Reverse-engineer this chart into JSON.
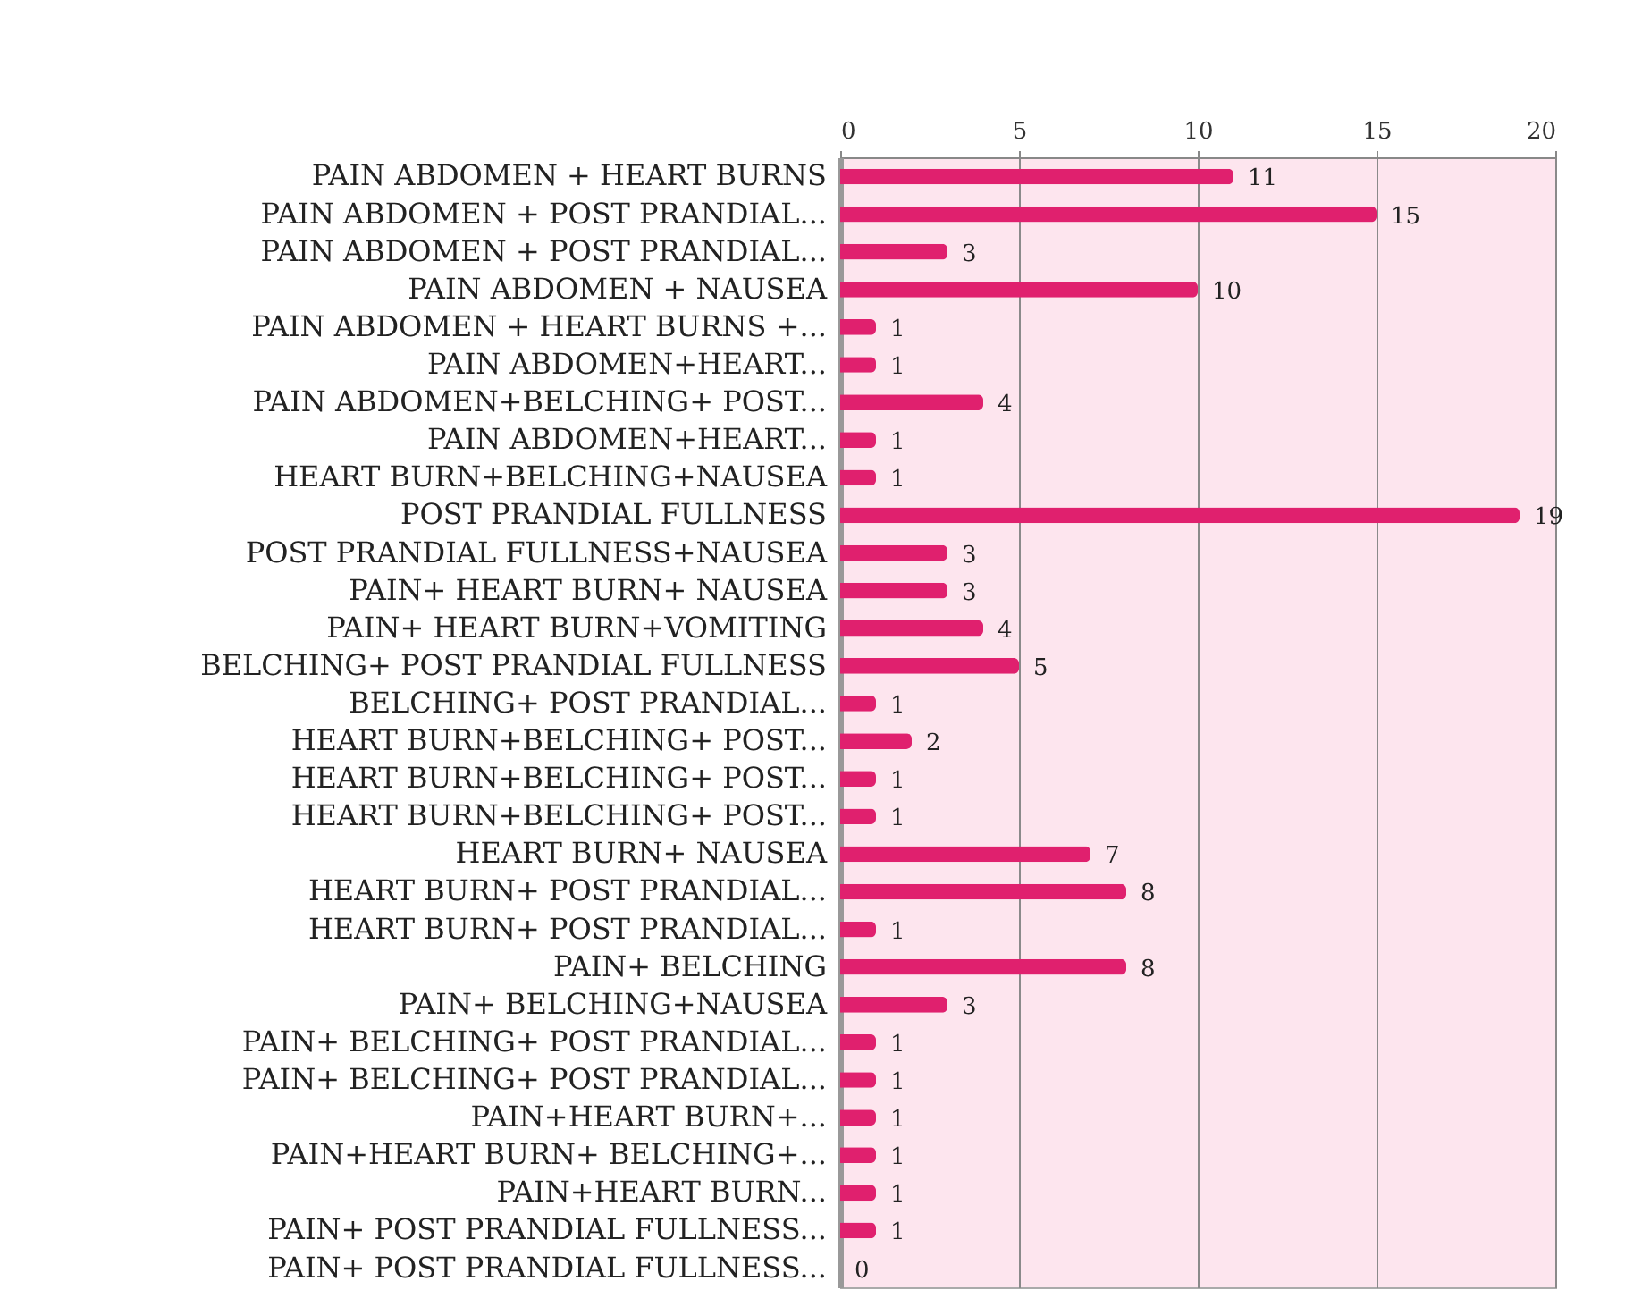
{
  "chart_data": {
    "type": "bar",
    "orientation": "horizontal",
    "categories": [
      "PAIN ABDOMEN + HEART BURNS",
      "PAIN ABDOMEN + POST PRANDIAL...",
      "PAIN ABDOMEN + POST PRANDIAL...",
      "PAIN ABDOMEN + NAUSEA",
      "PAIN ABDOMEN + HEART BURNS +...",
      "PAIN ABDOMEN+HEART...",
      "PAIN ABDOMEN+BELCHING+ POST...",
      "PAIN ABDOMEN+HEART...",
      "HEART BURN+BELCHING+NAUSEA",
      "POST PRANDIAL FULLNESS",
      "POST PRANDIAL FULLNESS+NAUSEA",
      "PAIN+ HEART BURN+ NAUSEA",
      "PAIN+ HEART BURN+VOMITING",
      "BELCHING+ POST PRANDIAL FULLNESS",
      "BELCHING+ POST PRANDIAL...",
      "HEART BURN+BELCHING+ POST...",
      "HEART BURN+BELCHING+ POST...",
      "HEART BURN+BELCHING+ POST...",
      "HEART BURN+ NAUSEA",
      "HEART BURN+ POST PRANDIAL...",
      "HEART BURN+ POST PRANDIAL...",
      "PAIN+ BELCHING",
      "PAIN+ BELCHING+NAUSEA",
      "PAIN+ BELCHING+ POST PRANDIAL...",
      "PAIN+ BELCHING+ POST PRANDIAL...",
      "PAIN+HEART BURN+...",
      "PAIN+HEART BURN+ BELCHING+...",
      "PAIN+HEART BURN...",
      "PAIN+ POST PRANDIAL FULLNESS...",
      "PAIN+ POST PRANDIAL FULLNESS..."
    ],
    "values": [
      11,
      15,
      3,
      10,
      1,
      1,
      4,
      1,
      1,
      19,
      3,
      3,
      4,
      5,
      1,
      2,
      1,
      1,
      7,
      8,
      1,
      8,
      3,
      1,
      1,
      1,
      1,
      1,
      1,
      0
    ],
    "color": "#e0206e",
    "xlim": [
      0,
      20
    ],
    "xticks": [
      0,
      5,
      10,
      15,
      20
    ],
    "grid": "x",
    "data_labels": true
  }
}
